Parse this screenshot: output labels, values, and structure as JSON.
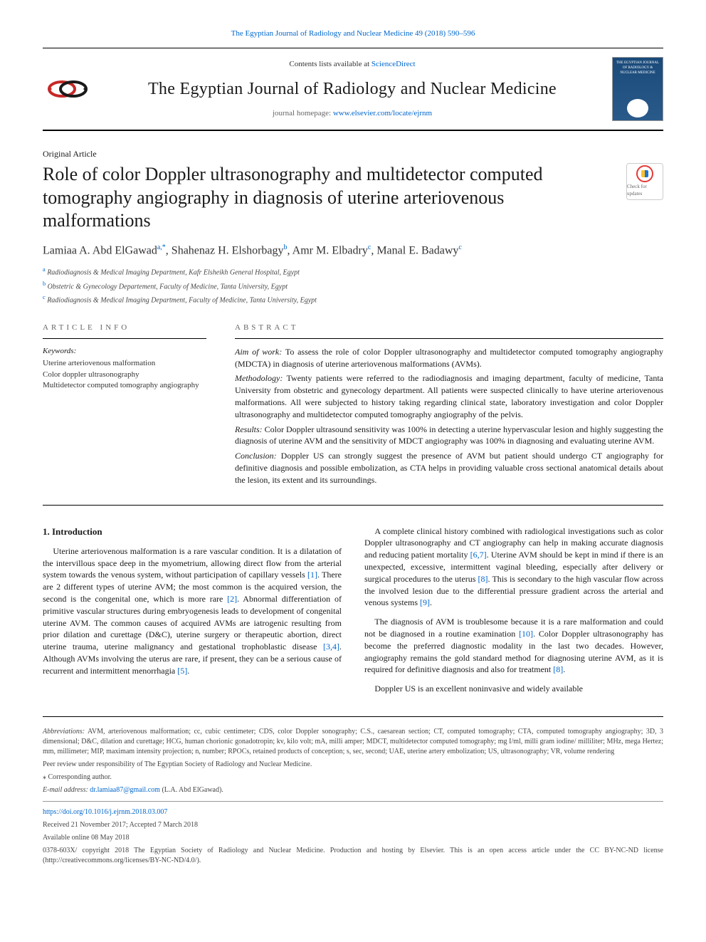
{
  "top_citation": "The Egyptian Journal of Radiology and Nuclear Medicine 49 (2018) 590–596",
  "header": {
    "contents_prefix": "Contents lists available at ",
    "contents_link": "ScienceDirect",
    "journal_name": "The Egyptian Journal of Radiology and Nuclear Medicine",
    "homepage_prefix": "journal homepage: ",
    "homepage_url": "www.elsevier.com/locate/ejrnm",
    "cover_title": "THE EGYPTIAN JOURNAL OF RADIOLOGY & NUCLEAR MEDICINE"
  },
  "article_type": "Original Article",
  "title": "Role of color Doppler ultrasonography and multidetector computed tomography angiography in diagnosis of uterine arteriovenous malformations",
  "crossmark_label": "Check for updates",
  "authors_html": "Lamiaa A. Abd ElGawad<sup>a,*</sup>, Shahenaz H. Elshorbagy<sup>b</sup>, Amr M. Elbadry<sup>c</sup>, Manal E. Badawy<sup>c</sup>",
  "affiliations": [
    {
      "sup": "a",
      "text": "Radiodiagnosis & Medical Imaging Department, Kafr Elsheikh General Hospital, Egypt"
    },
    {
      "sup": "b",
      "text": "Obstetric & Gynecology Departement, Faculty of Medicine, Tanta University, Egypt"
    },
    {
      "sup": "c",
      "text": "Radiodiagnosis & Medical Imaging Department, Faculty of Medicine, Tanta University, Egypt"
    }
  ],
  "article_info_head": "ARTICLE INFO",
  "abstract_head": "ABSTRACT",
  "keywords_head": "Keywords:",
  "keywords": [
    "Uterine arteriovenous malformation",
    "Color doppler ultrasonography",
    "Multidetector computed tomography angiography"
  ],
  "abstract": {
    "aim_label": "Aim of work:",
    "aim_text": " To assess the role of color Doppler ultrasonography and multidetector computed tomography angiography (MDCTA) in diagnosis of uterine arteriovenous malformations (AVMs).",
    "meth_label": "Methodology:",
    "meth_text": " Twenty patients were referred to the radiodiagnosis and imaging department, faculty of medicine, Tanta University from obstetric and gynecology department. All patients were suspected clinically to have uterine arteriovenous malformations. All were subjected to history taking regarding clinical state, laboratory investigation and color Doppler ultrasonography and multidetector computed tomography angiography of the pelvis.",
    "res_label": "Results:",
    "res_text": " Color Doppler ultrasound sensitivity was 100% in detecting a uterine hypervascular lesion and highly suggesting the diagnosis of uterine AVM and the sensitivity of MDCT angiography was 100% in diagnosing and evaluating uterine AVM.",
    "conc_label": "Conclusion:",
    "conc_text": " Doppler US can strongly suggest the presence of AVM but patient should undergo CT angiography for definitive diagnosis and possible embolization, as CTA helps in providing valuable cross sectional anatomical details about the lesion, its extent and its surroundings."
  },
  "intro_head": "1. Introduction",
  "body_paragraphs": [
    "Uterine arteriovenous malformation is a rare vascular condition. It is a dilatation of the intervillous space deep in the myometrium, allowing direct flow from the arterial system towards the venous system, without participation of capillary vessels [1]. There are 2 different types of uterine AVM; the most common is the acquired version, the second is the congenital one, which is more rare [2]. Abnormal differentiation of primitive vascular structures during embryogenesis leads to development of congenital uterine AVM. The common causes of acquired AVMs are iatrogenic resulting from prior dilation and curettage (D&C), uterine surgery or therapeutic abortion, direct uterine trauma, uterine malignancy and gestational trophoblastic disease [3,4]. Although AVMs involving the uterus are rare, if present, they can be a serious cause of recurrent and intermittent menorrhagia [5].",
    "A complete clinical history combined with radiological investigations such as color Doppler ultrasonography and CT angiography can help in making accurate diagnosis and reducing patient mortality [6,7]. Uterine AVM should be kept in mind if there is an unexpected, excessive, intermittent vaginal bleeding, especially after delivery or surgical procedures to the uterus [8]. This is secondary to the high vascular flow across the involved lesion due to the differential pressure gradient across the arterial and venous systems [9].",
    "The diagnosis of AVM is troublesome because it is a rare malformation and could not be diagnosed in a routine examination [10]. Color Doppler ultrasonography has become the preferred diagnostic modality in the last two decades. However, angiography remains the gold standard method for diagnosing uterine AVM, as it is required for definitive diagnosis and also for treatment [8].",
    "Doppler US is an excellent noninvasive and widely available"
  ],
  "footer": {
    "abbr_label": "Abbreviations:",
    "abbr_text": " AVM, arteriovenous malformation; cc, cubic centimeter; CDS, color Doppler sonography; C.S., caesarean section; CT, computed tomography; CTA, computed tomography angiography; 3D, 3 dimensional; D&C, dilation and curettage; HCG, human chorionic gonadotropin; kv, kilo volt; mA, milli amper; MDCT, multidetector computed tomography; mg I/ml, milli gram iodine/ milliliter; MHz, mega Hertez; mm, millimeter; MIP, maximam intensity projection; n, number; RPOCs, retained products of conception; s, sec, second; UAE, uterine artery embolization; US, ultrasonography; VR, volume rendering",
    "peer_review": "Peer review under responsibility of The Egyptian Society of Radiology and Nuclear Medicine.",
    "corresp_marker": "⁎",
    "corresp_text": " Corresponding author.",
    "email_label": "E-mail address:",
    "email": "dr.lamiaa87@gmail.com",
    "email_who": " (L.A. Abd ElGawad).",
    "doi": "https://doi.org/10.1016/j.ejrnm.2018.03.007",
    "received": "Received 21 November 2017; Accepted 7 March 2018",
    "available": "Available online 08 May 2018",
    "license": "0378-603X/ copyright 2018 The Egyptian Society of Radiology and Nuclear Medicine. Production and hosting by Elsevier. This is an open access article under the CC BY-NC-ND license (http://creativecommons.org/licenses/BY-NC-ND/4.0/)."
  },
  "colors": {
    "link": "#0066cc",
    "accent_red": "#c62828",
    "cover_bg": "#1a4a7a"
  }
}
